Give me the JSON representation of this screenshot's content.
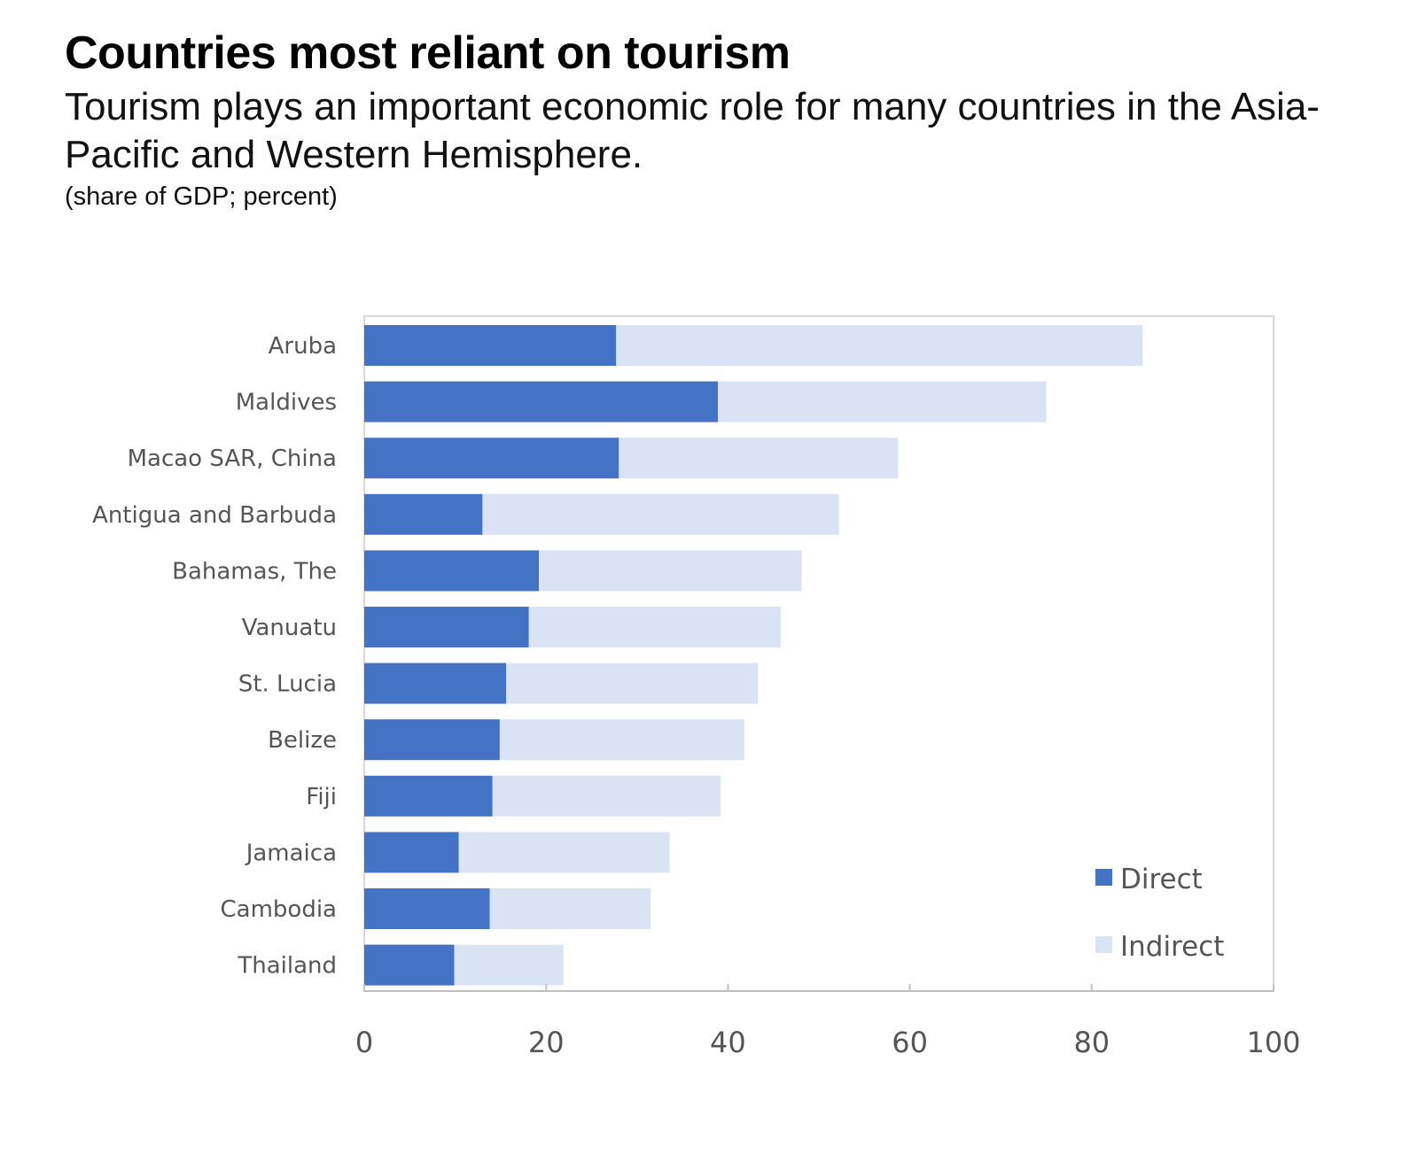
{
  "header": {
    "title": "Countries most reliant on tourism",
    "subtitle": "Tourism plays an important economic role for many countries in the Asia-Pacific and Western Hemisphere.",
    "units": "(share of GDP; percent)"
  },
  "chart_data": {
    "type": "bar",
    "orientation": "horizontal",
    "stacked": true,
    "categories": [
      "Aruba",
      "Maldives",
      "Macao SAR, China",
      "Antigua and Barbuda",
      "Bahamas, The",
      "Vanuatu",
      "St. Lucia",
      "Belize",
      "Fiji",
      "Jamaica",
      "Cambodia",
      "Thailand"
    ],
    "series": [
      {
        "name": "Direct",
        "color": "#4472c4",
        "values": [
          27.7,
          38.9,
          28.0,
          13.0,
          19.2,
          18.1,
          15.6,
          14.9,
          14.1,
          10.4,
          13.8,
          9.9
        ]
      },
      {
        "name": "Indirect",
        "color": "#dae3f3",
        "values": [
          57.9,
          36.1,
          30.7,
          39.2,
          28.9,
          27.7,
          27.7,
          26.9,
          25.1,
          23.2,
          17.7,
          12.0
        ]
      }
    ],
    "xlim": [
      0,
      100
    ],
    "xticks": [
      "0",
      "20",
      "40",
      "60",
      "80",
      "100"
    ],
    "grid": false,
    "legend_position": "bottom-right"
  }
}
